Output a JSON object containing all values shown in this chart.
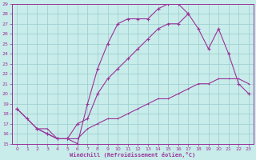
{
  "xlabel": "Windchill (Refroidissement éolien,°C)",
  "xlim": [
    -0.5,
    23.5
  ],
  "ylim": [
    15,
    29
  ],
  "xticks": [
    0,
    1,
    2,
    3,
    4,
    5,
    6,
    7,
    8,
    9,
    10,
    11,
    12,
    13,
    14,
    15,
    16,
    17,
    18,
    19,
    20,
    21,
    22,
    23
  ],
  "yticks": [
    15,
    16,
    17,
    18,
    19,
    20,
    21,
    22,
    23,
    24,
    25,
    26,
    27,
    28,
    29
  ],
  "bg_color": "#c8ecea",
  "line_color": "#993399",
  "grid_color": "#99cccc",
  "line1_x": [
    0,
    1,
    2,
    3,
    4,
    5,
    6,
    7,
    8,
    9,
    10,
    11,
    12,
    13,
    14,
    15,
    16,
    17
  ],
  "line1_y": [
    18.5,
    17.5,
    16.5,
    16,
    15.5,
    15.5,
    15,
    19,
    22.5,
    25,
    27,
    27.5,
    27.5,
    27.5,
    28.5,
    29,
    29,
    28
  ],
  "line2_x": [
    0,
    2,
    3,
    4,
    5,
    6,
    7,
    8,
    9,
    10,
    11,
    12,
    13,
    14,
    15,
    16,
    17,
    18,
    19,
    20,
    21,
    22,
    23
  ],
  "line2_y": [
    18.5,
    16.5,
    16,
    15.5,
    15.5,
    17,
    17.5,
    20,
    21.5,
    22.5,
    23.5,
    24.5,
    25.5,
    26.5,
    27,
    27,
    28,
    26.5,
    24.5,
    26.5,
    24,
    21,
    20
  ],
  "line3_x": [
    2,
    3,
    4,
    5,
    6,
    7,
    8,
    9,
    10,
    11,
    12,
    13,
    14,
    15,
    16,
    17,
    18,
    19,
    20,
    21,
    22,
    23
  ],
  "line3_y": [
    16.5,
    16.5,
    15.5,
    15.5,
    15.5,
    16.5,
    17,
    17.5,
    17.5,
    18,
    18.5,
    19,
    19.5,
    19.5,
    20,
    20.5,
    21,
    21,
    21.5,
    21.5,
    21.5,
    21
  ]
}
